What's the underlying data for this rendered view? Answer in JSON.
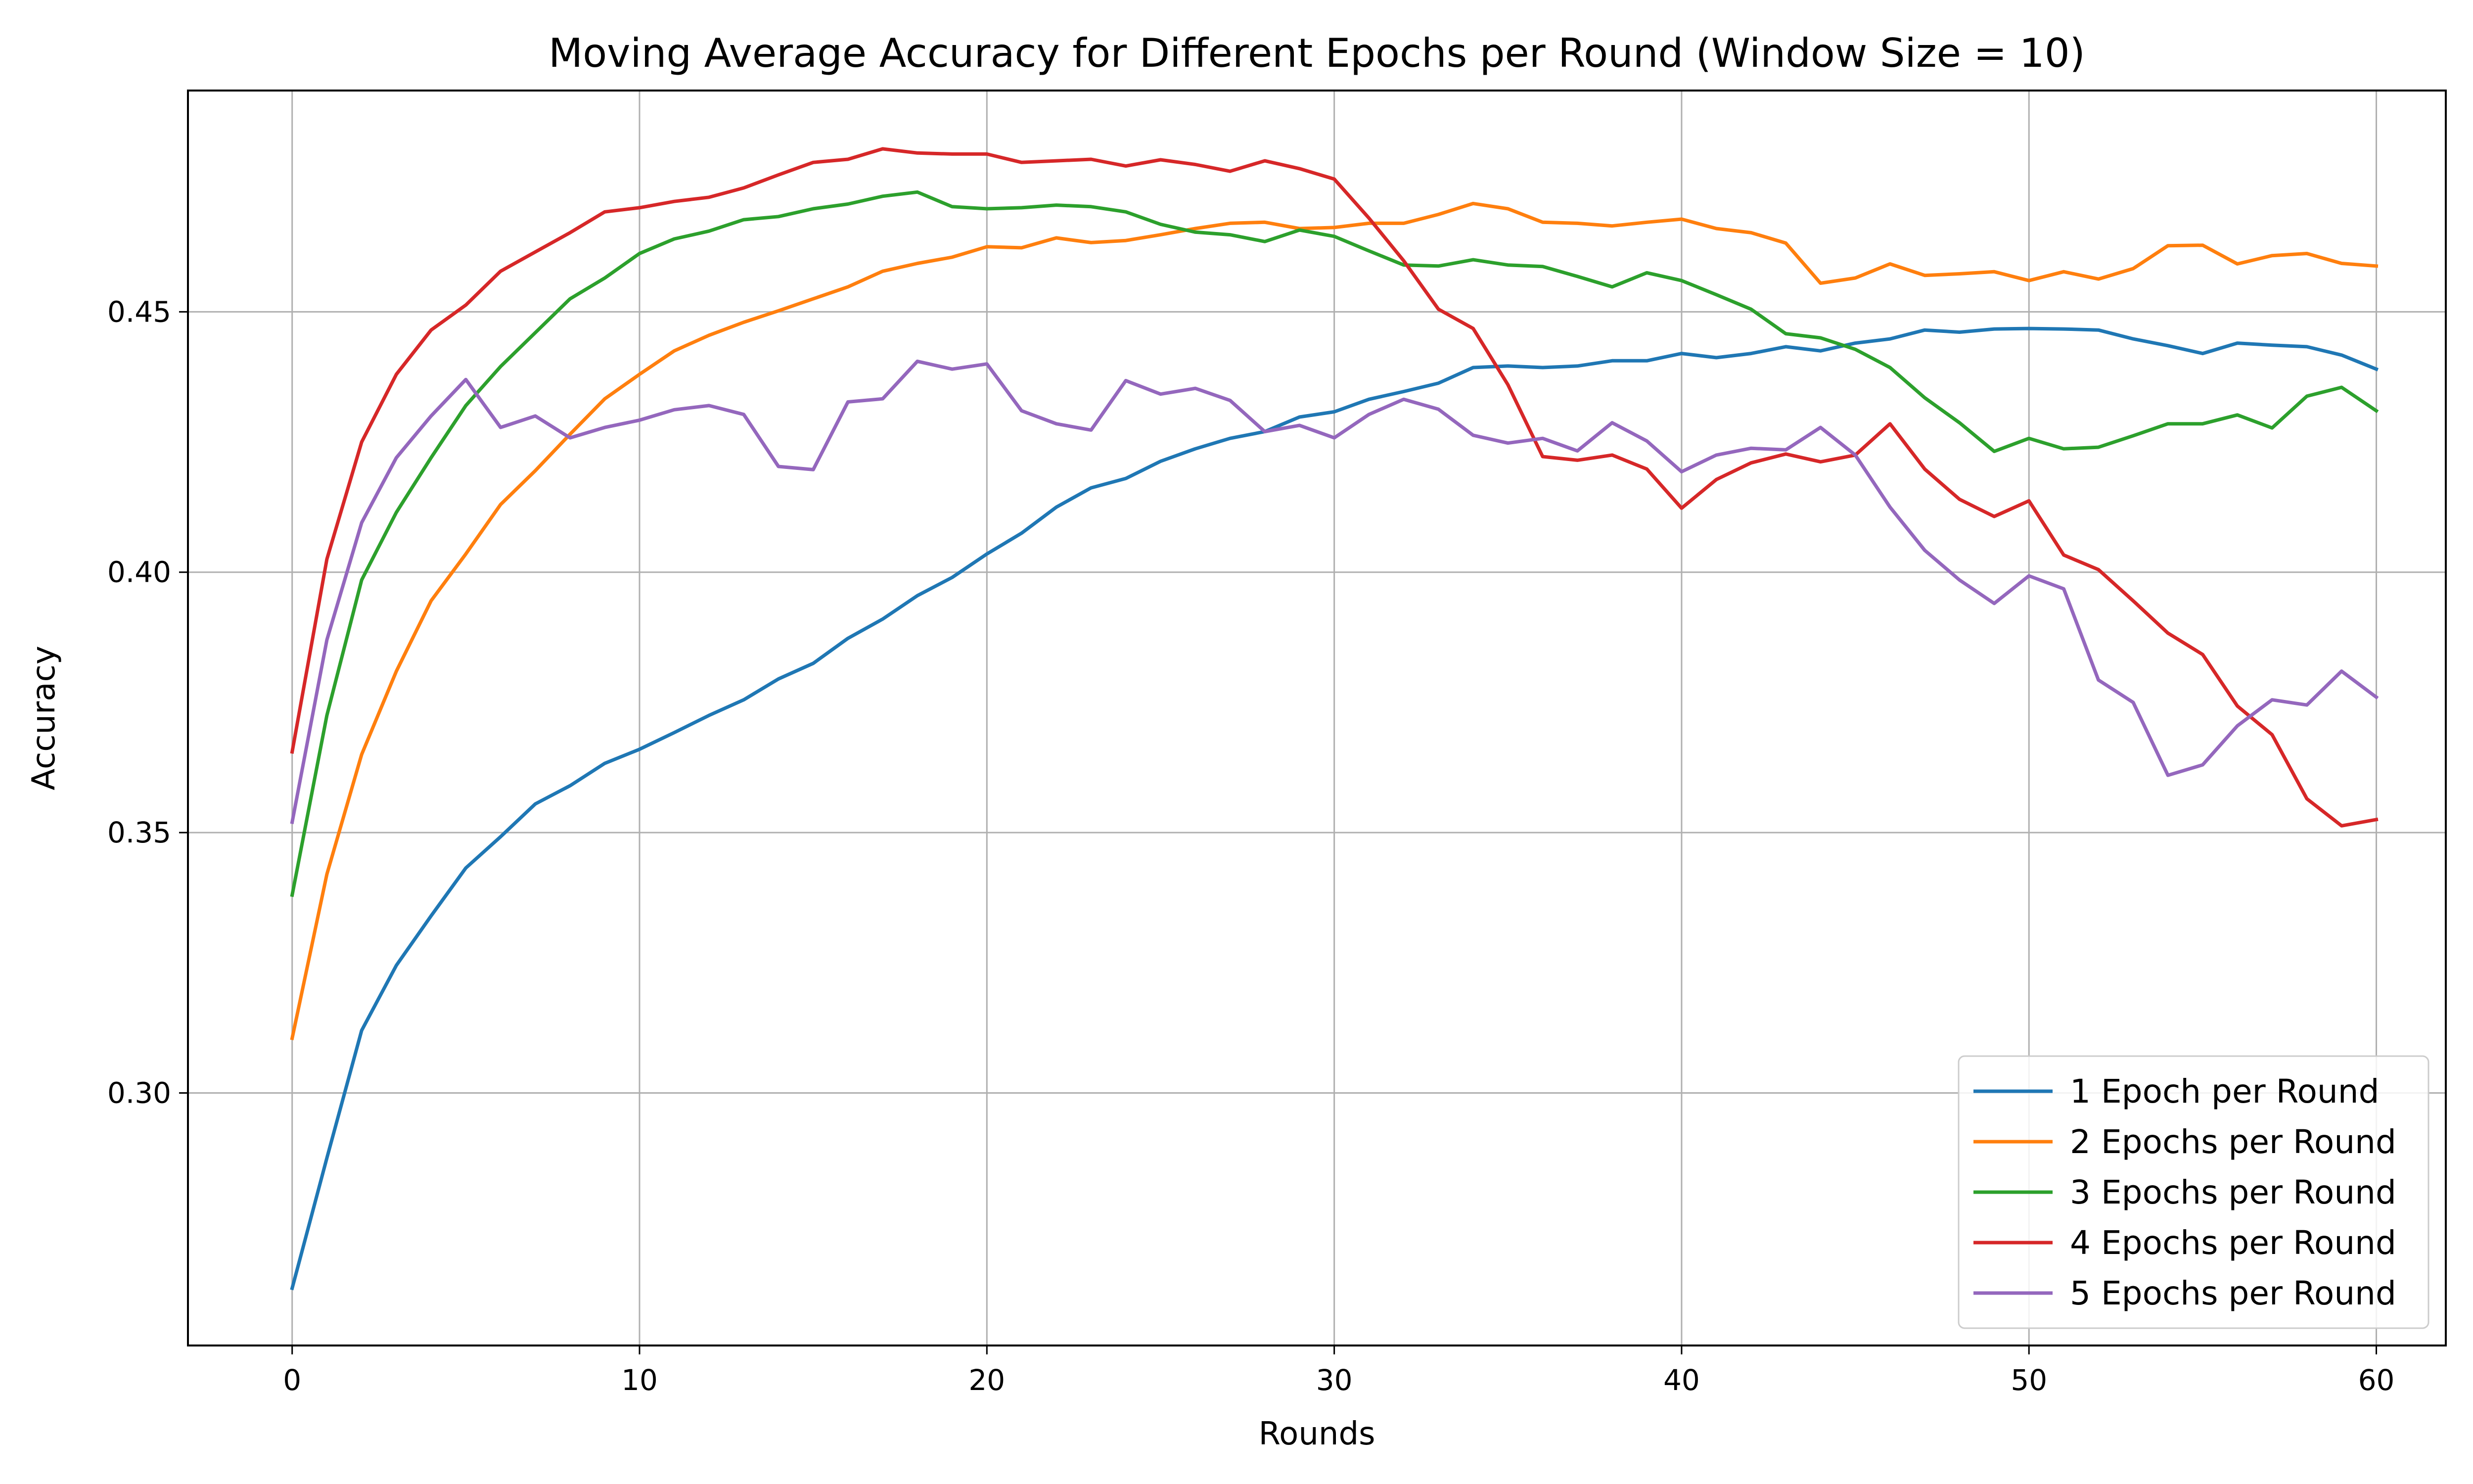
{
  "chart_data": {
    "type": "line",
    "title": "Moving Average Accuracy for Different Epochs per Round (Window Size = 10)",
    "xlabel": "Rounds",
    "ylabel": "Accuracy",
    "xlim": [
      -3,
      62
    ],
    "ylim": [
      0.2515,
      0.4925
    ],
    "x_ticks": [
      0,
      10,
      20,
      30,
      40,
      50,
      60
    ],
    "x_tick_labels": [
      "0",
      "10",
      "20",
      "30",
      "40",
      "50",
      "60"
    ],
    "y_ticks": [
      0.3,
      0.35,
      0.4,
      0.45
    ],
    "y_tick_labels": [
      "0.30",
      "0.35",
      "0.40",
      "0.45"
    ],
    "grid": true,
    "legend_position": "lower-right",
    "x": [
      0,
      1,
      2,
      3,
      4,
      5,
      6,
      7,
      8,
      9,
      10,
      11,
      12,
      13,
      14,
      15,
      16,
      17,
      18,
      19,
      20,
      21,
      22,
      23,
      24,
      25,
      26,
      27,
      28,
      29,
      30,
      31,
      32,
      33,
      34,
      35,
      36,
      37,
      38,
      39,
      40,
      41,
      42,
      43,
      44,
      45,
      46,
      47,
      48,
      49,
      50,
      51,
      52,
      53,
      54,
      55,
      56,
      57,
      58,
      59,
      60
    ],
    "series": [
      {
        "name": "1 Epoch per Round",
        "color": "#1f77b4",
        "values": [
          0.2625,
          0.2875,
          0.312,
          0.3245,
          0.334,
          0.3432,
          0.3492,
          0.3555,
          0.359,
          0.3633,
          0.366,
          0.3692,
          0.3725,
          0.3755,
          0.3795,
          0.3825,
          0.3873,
          0.391,
          0.3955,
          0.399,
          0.4035,
          0.4075,
          0.4125,
          0.4162,
          0.418,
          0.4213,
          0.4237,
          0.4257,
          0.427,
          0.4298,
          0.4308,
          0.4332,
          0.4347,
          0.4363,
          0.4393,
          0.4396,
          0.4393,
          0.4396,
          0.4406,
          0.4406,
          0.442,
          0.4412,
          0.442,
          0.4433,
          0.4425,
          0.444,
          0.4448,
          0.4465,
          0.4461,
          0.4467,
          0.4468,
          0.4467,
          0.4465,
          0.4448,
          0.4435,
          0.442,
          0.444,
          0.4436,
          0.4433,
          0.4417,
          0.439
        ]
      },
      {
        "name": "2 Epochs per Round",
        "color": "#ff7f0e",
        "values": [
          0.3105,
          0.342,
          0.365,
          0.381,
          0.3945,
          0.4035,
          0.413,
          0.4195,
          0.4265,
          0.4333,
          0.438,
          0.4425,
          0.4455,
          0.448,
          0.4502,
          0.4525,
          0.4548,
          0.4578,
          0.4593,
          0.4605,
          0.4625,
          0.4623,
          0.4642,
          0.4633,
          0.4637,
          0.4648,
          0.466,
          0.467,
          0.4672,
          0.466,
          0.4662,
          0.467,
          0.467,
          0.4687,
          0.4708,
          0.4698,
          0.4672,
          0.467,
          0.4665,
          0.4672,
          0.4678,
          0.466,
          0.4652,
          0.4632,
          0.4555,
          0.4565,
          0.4592,
          0.457,
          0.4573,
          0.4577,
          0.456,
          0.4577,
          0.4563,
          0.4583,
          0.4627,
          0.4628,
          0.4592,
          0.4608,
          0.4612,
          0.4593,
          0.4588
        ]
      },
      {
        "name": "3 Epochs per Round",
        "color": "#2ca02c",
        "values": [
          0.338,
          0.3725,
          0.3985,
          0.4115,
          0.422,
          0.432,
          0.4395,
          0.446,
          0.4525,
          0.4565,
          0.4612,
          0.464,
          0.4655,
          0.4677,
          0.4683,
          0.4698,
          0.4707,
          0.4722,
          0.473,
          0.4702,
          0.4698,
          0.47,
          0.4705,
          0.4702,
          0.4692,
          0.4668,
          0.4653,
          0.4648,
          0.4635,
          0.4657,
          0.4645,
          0.4617,
          0.459,
          0.4588,
          0.46,
          0.459,
          0.4587,
          0.4568,
          0.4548,
          0.4575,
          0.456,
          0.4533,
          0.4505,
          0.4458,
          0.445,
          0.4428,
          0.4393,
          0.4335,
          0.4287,
          0.4232,
          0.4257,
          0.4237,
          0.424,
          0.4262,
          0.4285,
          0.4285,
          0.4302,
          0.4277,
          0.4338,
          0.4355,
          0.431
        ]
      },
      {
        "name": "4 Epochs per Round",
        "color": "#d62728",
        "values": [
          0.3655,
          0.4025,
          0.425,
          0.438,
          0.4465,
          0.4513,
          0.4578,
          0.4615,
          0.4652,
          0.4692,
          0.47,
          0.4712,
          0.472,
          0.4738,
          0.4763,
          0.4787,
          0.4793,
          0.4813,
          0.4805,
          0.4803,
          0.4803,
          0.4787,
          0.479,
          0.4793,
          0.478,
          0.4792,
          0.4783,
          0.477,
          0.479,
          0.4775,
          0.4755,
          0.468,
          0.4598,
          0.4505,
          0.4468,
          0.436,
          0.4222,
          0.4215,
          0.4225,
          0.4198,
          0.4123,
          0.4178,
          0.421,
          0.4227,
          0.4212,
          0.4225,
          0.4285,
          0.4198,
          0.414,
          0.4107,
          0.4137,
          0.4033,
          0.4005,
          0.3945,
          0.3883,
          0.3842,
          0.3743,
          0.3688,
          0.3565,
          0.3513,
          0.3525
        ]
      },
      {
        "name": "5 Epochs per Round",
        "color": "#9467bd",
        "values": [
          0.352,
          0.387,
          0.4095,
          0.422,
          0.43,
          0.437,
          0.4278,
          0.43,
          0.4258,
          0.4278,
          0.4292,
          0.4312,
          0.432,
          0.4303,
          0.4203,
          0.4197,
          0.4327,
          0.4333,
          0.4405,
          0.439,
          0.44,
          0.431,
          0.4285,
          0.4273,
          0.4368,
          0.4342,
          0.4353,
          0.433,
          0.427,
          0.4282,
          0.4258,
          0.4303,
          0.4332,
          0.4313,
          0.4263,
          0.4248,
          0.4257,
          0.4233,
          0.4287,
          0.4252,
          0.4193,
          0.4225,
          0.4238,
          0.4235,
          0.4278,
          0.4225,
          0.4125,
          0.4042,
          0.3985,
          0.394,
          0.3993,
          0.3968,
          0.3793,
          0.375,
          0.361,
          0.363,
          0.3705,
          0.3755,
          0.3745,
          0.381,
          0.376
        ]
      }
    ]
  }
}
